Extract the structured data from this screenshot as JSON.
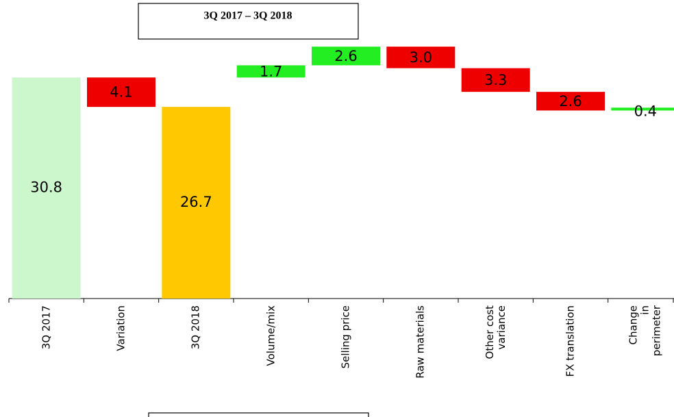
{
  "chart_data": {
    "type": "waterfall",
    "title": "3Q 2017 – 3Q 2018",
    "categories": [
      "3Q 2017",
      "Variation",
      "3Q 2018",
      "Volume/mix",
      "Selling price",
      "Raw materials",
      "Other cost\nvariance",
      "FX translation",
      "Change in\nperimeter"
    ],
    "values": [
      30.8,
      4.1,
      26.7,
      1.7,
      2.6,
      3.0,
      3.3,
      2.6,
      0.4
    ],
    "value_labels": [
      "30.8",
      "4.1",
      "26.7",
      "1.7",
      "2.6",
      "3.0",
      "3.3",
      "2.6",
      "0.4"
    ],
    "directions": [
      "total",
      "net-down",
      "total",
      "up",
      "up",
      "down",
      "down",
      "down",
      "up"
    ],
    "colors": [
      "#ccf7cc",
      "#ee0000",
      "#ffc800",
      "#22ee22",
      "#22ee22",
      "#ee0000",
      "#ee0000",
      "#ee0000",
      "#22ee22"
    ],
    "ylim": [
      0,
      41.6
    ]
  }
}
